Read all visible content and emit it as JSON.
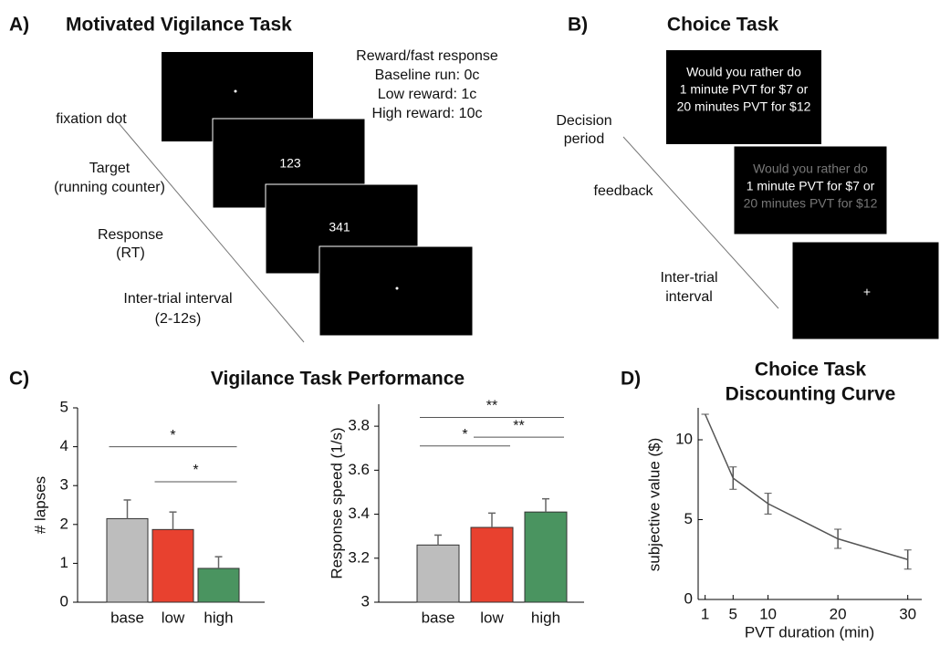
{
  "panel_a": {
    "label": "A)",
    "title": "Motivated Vigilance Task",
    "reward_header": "Reward/fast response",
    "reward_lines": [
      "Baseline run: 0c",
      "Low reward:  1c",
      "High reward: 10c"
    ],
    "steps": [
      [
        "fixation dot"
      ],
      [
        "Target",
        "(running counter)"
      ],
      [
        "Response",
        "(RT)"
      ],
      [
        "Inter-trial interval",
        "(2-12s)"
      ]
    ],
    "counters": [
      "123",
      "341"
    ]
  },
  "panel_b": {
    "label": "B)",
    "title": "Choice Task",
    "question": [
      "Would you rather do",
      "1 minute PVT for $7 or",
      "20 minutes PVT for $12"
    ],
    "steps": [
      [
        "Decision",
        "period"
      ],
      [
        "feedback"
      ],
      [
        "Inter-trial",
        "interval"
      ]
    ],
    "fixation": "+"
  },
  "panel_c": {
    "label": "C)",
    "title": "Vigilance Task Performance"
  },
  "panel_d": {
    "label": "D)"
  },
  "chart_data": [
    {
      "type": "bar",
      "ylabel": "# lapses",
      "categories": [
        "base",
        "low",
        "high"
      ],
      "values": [
        2.15,
        1.87,
        0.87
      ],
      "errors": [
        0.48,
        0.45,
        0.3
      ],
      "colors": [
        "#bdbdbd",
        "#e8412f",
        "#4a9460"
      ],
      "ylim": [
        0,
        5
      ],
      "yticks": [
        0,
        1,
        2,
        3,
        4,
        5
      ],
      "significance": [
        {
          "from": 0,
          "to": 2,
          "y": 4.0,
          "label": "*"
        },
        {
          "from": 1,
          "to": 2,
          "y": 3.1,
          "label": "*"
        }
      ]
    },
    {
      "type": "bar",
      "ylabel": "Response speed (1/s)",
      "categories": [
        "base",
        "low",
        "high"
      ],
      "values": [
        3.26,
        3.34,
        3.41
      ],
      "errors": [
        0.045,
        0.065,
        0.06
      ],
      "colors": [
        "#bdbdbd",
        "#e8412f",
        "#4a9460"
      ],
      "ylim": [
        3,
        3.9
      ],
      "yticks": [
        3,
        3.2,
        3.4,
        3.6,
        3.8
      ],
      "significance": [
        {
          "from": 0,
          "to": 2,
          "y": 3.84,
          "label": "**"
        },
        {
          "from": 0,
          "to": 1,
          "y": 3.71,
          "label": "*"
        },
        {
          "from": 1,
          "to": 2,
          "y": 3.75,
          "label": "**"
        }
      ]
    },
    {
      "type": "line",
      "title": [
        "Choice Task",
        "Discounting Curve"
      ],
      "xlabel": "PVT duration (min)",
      "ylabel": "subjective value ($)",
      "x": [
        1,
        5,
        10,
        20,
        30
      ],
      "values": [
        11.6,
        7.6,
        6.0,
        3.8,
        2.5
      ],
      "errors": [
        0,
        0.7,
        0.65,
        0.6,
        0.6
      ],
      "color": "#555555",
      "xlim": [
        0,
        32
      ],
      "xticks": [
        1,
        5,
        10,
        20,
        30
      ],
      "ylim": [
        0,
        12
      ],
      "yticks": [
        0,
        5,
        10
      ]
    }
  ]
}
